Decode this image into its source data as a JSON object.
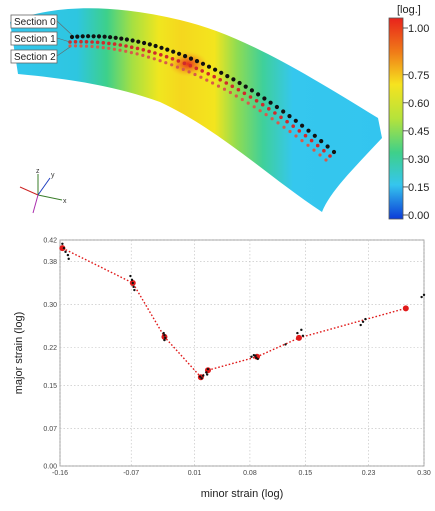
{
  "map": {
    "sections": [
      "Section 0",
      "Section 1",
      "Section 2"
    ],
    "colorbar": {
      "unit": "[log.]",
      "ticks": [
        "1.00",
        "0.75",
        "0.60",
        "0.45",
        "0.30",
        "0.15",
        "0.00"
      ],
      "tick_values": [
        1.0,
        0.75,
        0.6,
        0.45,
        0.3,
        0.15,
        0.0
      ],
      "colors": [
        "#e8231c",
        "#f07c18",
        "#f6e31f",
        "#b5e33b",
        "#3ed08a",
        "#35c6ee",
        "#0b3bd8"
      ]
    },
    "axes_icon": {
      "x": "x",
      "y": "y",
      "z": "z"
    }
  },
  "chart_data": {
    "type": "scatter",
    "xlabel": "minor strain  (log)",
    "ylabel": "major strain (log)",
    "xlim": [
      -0.16,
      0.3
    ],
    "ylim": [
      0.0,
      0.42
    ],
    "xticks": [
      "-0.16",
      "-0.07",
      "0.01",
      "0.08",
      "0.15",
      "0.23",
      "0.30"
    ],
    "xtick_values": [
      -0.16,
      -0.07,
      0.01,
      0.08,
      0.15,
      0.23,
      0.3
    ],
    "yticks": [
      "0.00",
      "0.07",
      "0.15",
      "0.22",
      "0.30",
      "0.38",
      "0.42"
    ],
    "ytick_values": [
      0.0,
      0.07,
      0.15,
      0.22,
      0.3,
      0.38,
      0.42
    ],
    "grid": true,
    "series": [
      {
        "name": "",
        "color": "#111111",
        "style": "points",
        "points": [
          [
            -0.157,
            0.413
          ],
          [
            -0.155,
            0.405
          ],
          [
            -0.153,
            0.398
          ],
          [
            -0.15,
            0.392
          ],
          [
            -0.149,
            0.385
          ],
          [
            -0.071,
            0.353
          ],
          [
            -0.069,
            0.346
          ],
          [
            -0.068,
            0.34
          ],
          [
            -0.067,
            0.333
          ],
          [
            -0.066,
            0.327
          ],
          [
            -0.029,
            0.247
          ],
          [
            -0.028,
            0.243
          ],
          [
            -0.027,
            0.238
          ],
          [
            -0.028,
            0.234
          ],
          [
            0.017,
            0.166
          ],
          [
            0.019,
            0.163
          ],
          [
            0.021,
            0.168
          ],
          [
            0.025,
            0.174
          ],
          [
            0.027,
            0.18
          ],
          [
            0.026,
            0.17
          ],
          [
            0.082,
            0.203
          ],
          [
            0.085,
            0.206
          ],
          [
            0.088,
            0.201
          ],
          [
            0.09,
            0.199
          ],
          [
            0.087,
            0.205
          ],
          [
            0.125,
            0.226
          ],
          [
            0.14,
            0.247
          ],
          [
            0.145,
            0.253
          ],
          [
            0.147,
            0.242
          ],
          [
            0.22,
            0.262
          ],
          [
            0.223,
            0.268
          ],
          [
            0.226,
            0.273
          ],
          [
            0.297,
            0.314
          ],
          [
            0.3,
            0.318
          ]
        ]
      },
      {
        "name": "",
        "color": "#e01a1a",
        "style": "dotted-line",
        "points": [
          [
            -0.157,
            0.405
          ],
          [
            -0.068,
            0.34
          ],
          [
            -0.028,
            0.24
          ],
          [
            0.018,
            0.165
          ],
          [
            0.027,
            0.178
          ],
          [
            0.089,
            0.203
          ],
          [
            0.142,
            0.238
          ],
          [
            0.277,
            0.293
          ]
        ]
      }
    ]
  }
}
